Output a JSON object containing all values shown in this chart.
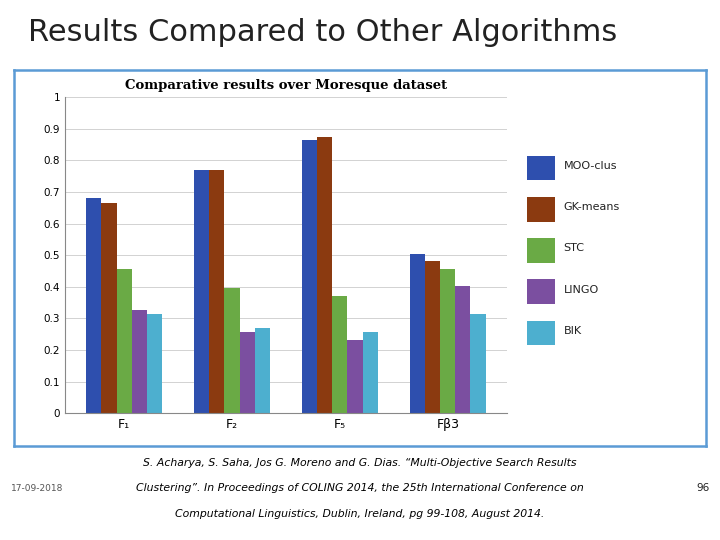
{
  "title": "Results Compared to Other Algorithms",
  "chart_title": "Comparative results over Moresque dataset",
  "categories": [
    "F₁",
    "F₂",
    "F₅",
    "Fβ3"
  ],
  "series": {
    "MOO-clus": [
      0.68,
      0.77,
      0.865,
      0.505
    ],
    "GK-means": [
      0.665,
      0.77,
      0.873,
      0.483
    ],
    "STC": [
      0.455,
      0.395,
      0.372,
      0.455
    ],
    "LINGO": [
      0.325,
      0.257,
      0.232,
      0.402
    ],
    "BIK": [
      0.313,
      0.268,
      0.256,
      0.313
    ]
  },
  "colors": {
    "MOO-clus": "#2E4FAE",
    "GK-means": "#8B3A10",
    "STC": "#6AAA45",
    "LINGO": "#7B4FA0",
    "BIK": "#4DAFCF"
  },
  "ylim": [
    0,
    1.0
  ],
  "yticks": [
    0,
    0.1,
    0.2,
    0.3,
    0.4,
    0.5,
    0.6,
    0.7,
    0.8,
    0.9,
    1
  ],
  "ytick_labels": [
    "0",
    "0.1",
    "0.2",
    "0.3",
    "0.4",
    "0.5",
    "0.6",
    "0.7",
    "0.8",
    "0.9",
    "1"
  ],
  "date_label": "17-09-2018",
  "page_num": "96",
  "outer_box_color": "#5B9BD5",
  "chart_bg_color": "#FFFFFF",
  "outer_bg_color": "#FFFFFF",
  "title_fontsize": 22,
  "chart_title_fontsize": 9.5,
  "bar_width": 0.14
}
